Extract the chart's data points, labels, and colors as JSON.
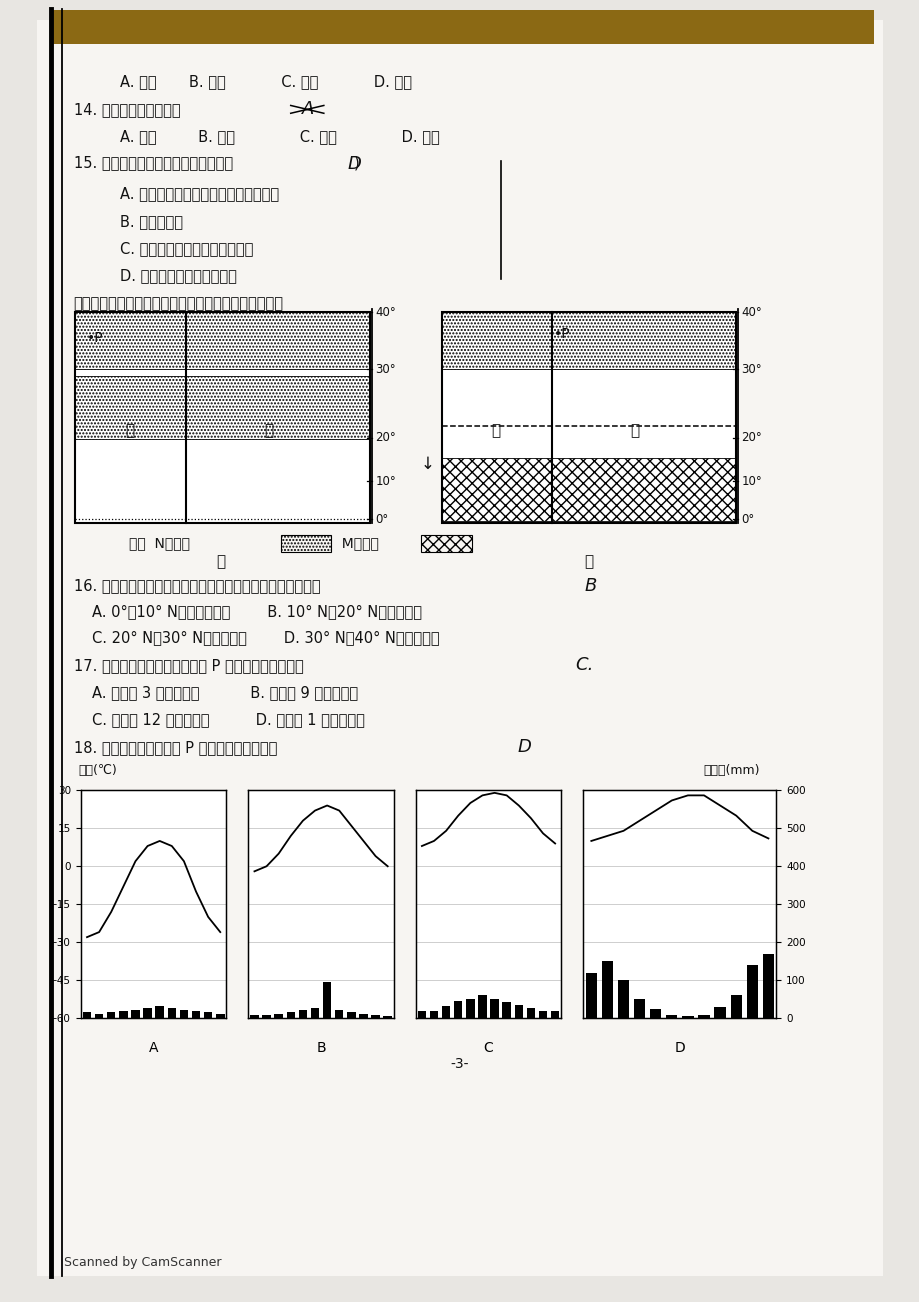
{
  "bg_color": "#e8e6e2",
  "paper_color": "#f7f5f2",
  "text_color": "#1a1a1a",
  "line1": "A. 夏季       B. 冬季            C. 春季            D. 秋季",
  "line2": "14. 太阳系的中心天体是",
  "line3": "A. 太阳         B. 地球              C. 金星              D. 火星",
  "line4": "15. 影响近地面风速的力是下列中的（",
  "line5": "A. 地球自转产生的地转偏向力和摩擦力",
  "line6": "B. 地转偏向力",
  "line7": "C. 水平气压梯度力和地转偏向力",
  "line8": "D. 水平气压梯度力和摩擦力",
  "line9": "读气压带和风带移动规律模式示意图，完成下列问题。",
  "line10": "16. 下列关于甲图所示季节各纶度气流运动的说法，正确的是",
  "line11": "A. 0°～10° N盛行东南风山        B. 10° N～20° N盛行东北风",
  "line12": "C. 20° N～30° N盛行西北风        D. 30° N～40° N盛行东北风",
  "line13": "17. 甲、乙两幅图反映的时间与 P 地季节对应正确的是",
  "line14": "A. 甲表示 3 月份、春季           B. 乙表示 9 月份、秋季",
  "line15": "C. 甲表示 12 月份、冬季          D. 乙表示 1 月份、冬季",
  "line16": "18. 下列四幅图中与上图 P 点气候特征相符的是",
  "temp_label": "气温(℃)",
  "precip_label": "降水量(mm)",
  "legend_N": "N气压带",
  "legend_M": "M气压带",
  "label_jia": "甲",
  "label_yi": "乙",
  "label_hai": "海",
  "label_lu": "陆",
  "page_num": "-3-",
  "footer": "Scanned by CamScanner",
  "temp_A": [
    -28,
    -26,
    -18,
    -8,
    2,
    8,
    10,
    8,
    2,
    -10,
    -20,
    -26
  ],
  "bars_A": [
    15,
    12,
    15,
    18,
    22,
    28,
    32,
    28,
    22,
    18,
    15,
    12
  ],
  "temp_B": [
    -2,
    0,
    5,
    12,
    18,
    22,
    24,
    22,
    16,
    10,
    4,
    0
  ],
  "bars_B": [
    8,
    8,
    10,
    15,
    22,
    28,
    95,
    22,
    15,
    10,
    8,
    7
  ],
  "temp_C": [
    8,
    10,
    14,
    20,
    25,
    28,
    29,
    28,
    24,
    19,
    13,
    9
  ],
  "bars_C": [
    18,
    20,
    32,
    45,
    50,
    60,
    50,
    42,
    35,
    28,
    20,
    18
  ],
  "temp_D": [
    10,
    12,
    14,
    18,
    22,
    26,
    28,
    28,
    24,
    20,
    14,
    11
  ],
  "bars_D": [
    120,
    150,
    100,
    50,
    25,
    8,
    5,
    8,
    30,
    60,
    140,
    170
  ],
  "temp_ylim": [
    -60,
    30
  ],
  "bars_ylim": [
    0,
    600
  ],
  "yticks_temp": [
    -60,
    -45,
    -30,
    -15,
    0,
    15,
    30
  ],
  "yticks_precip": [
    0,
    100,
    200,
    300,
    400,
    500,
    600
  ]
}
